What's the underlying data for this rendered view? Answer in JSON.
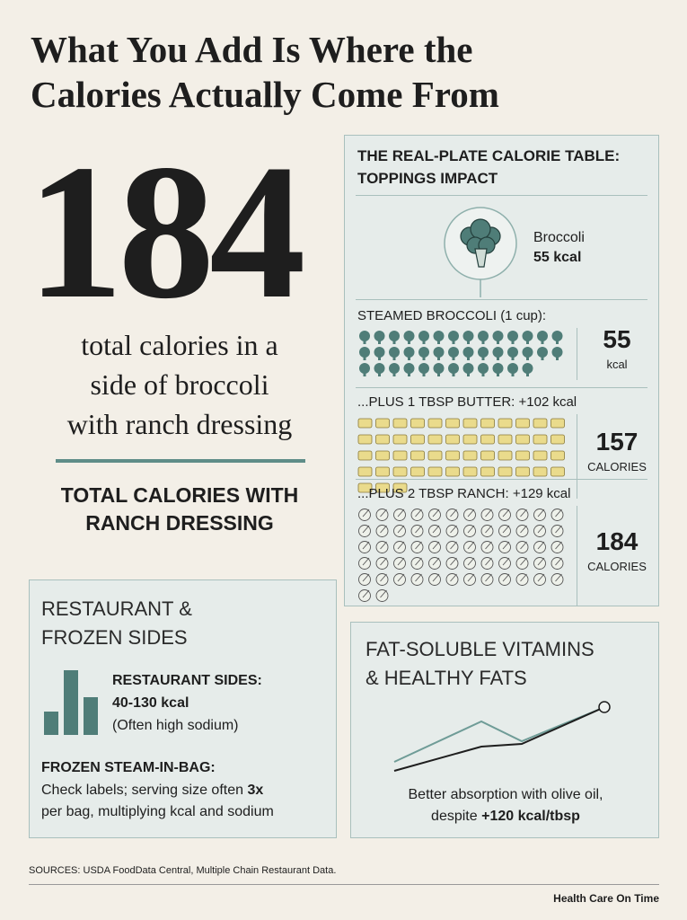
{
  "title_lines": [
    "What You Add Is Where the",
    "Calories Actually Come From"
  ],
  "hero": {
    "number": "184",
    "caption_lines": [
      "total calories in a",
      "side of broccoli",
      "with ranch dressing"
    ],
    "subhead_lines": [
      "TOTAL CALORIES WITH",
      "RANCH DRESSING"
    ]
  },
  "table": {
    "title_lines": [
      "THE REAL-PLATE CALORIE TABLE:",
      "TOPPINGS IMPACT"
    ],
    "badge": {
      "name": "Broccoli",
      "kcal": "55 kcal"
    },
    "rows": [
      {
        "label": "STEAMED BROCCOLI (1 cup):",
        "value": "55",
        "unit": "kcal"
      },
      {
        "label": "...PLUS 1 TBSP BUTTER: +102 kcal",
        "value": "157",
        "unit": "CALORIES"
      },
      {
        "label": "...PLUS 2 TBSP RANCH: +129 kcal",
        "value": "184",
        "unit": "CALORIES"
      }
    ]
  },
  "restaurant": {
    "title_lines": [
      "RESTAURANT &",
      "FROZEN SIDES"
    ],
    "sides_label": "RESTAURANT SIDES:",
    "sides_range": "40-130 kcal",
    "sides_note": "(Often high sodium)",
    "frozen_label": "FROZEN STEAM-IN-BAG:",
    "frozen_lines": [
      "Check labels; serving size often",
      "per bag, multiplying kcal and sodium"
    ],
    "frozen_bold": "3x"
  },
  "vitamins": {
    "title_lines": [
      "FAT-SOLUBLE VITAMINS",
      "& HEALTHY FATS"
    ],
    "text_lines": [
      "Better absorption with olive oil,",
      "despite"
    ],
    "text_bold": "+120 kcal/tbsp"
  },
  "sources": "SOURCES: USDA FoodData Central, Multiple Chain Restaurant Data.",
  "brand": "Health Care On Time"
}
